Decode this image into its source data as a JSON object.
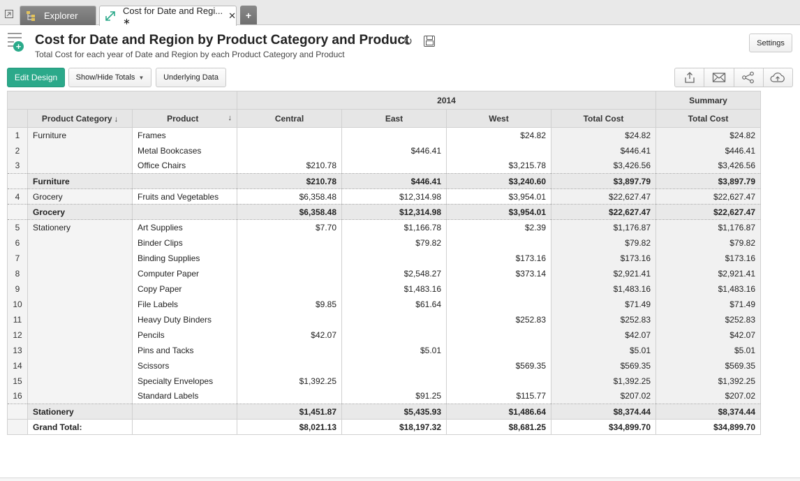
{
  "tabs": {
    "explorer_label": "Explorer",
    "active_label": "Cost for Date and Regi... ∗",
    "close_glyph": "✕",
    "add_glyph": "+"
  },
  "header": {
    "title": "Cost for Date and Region by Product Category and Product",
    "subtitle": "Total Cost for each year of Date and Region by each Product Category and Product",
    "settings_label": "Settings"
  },
  "toolbar": {
    "edit_design_label": "Edit Design",
    "show_hide_label": "Show/Hide Totals",
    "underlying_label": "Underlying Data",
    "icons": [
      "export-icon",
      "email-icon",
      "share-icon",
      "publish-icon"
    ]
  },
  "colors": {
    "accent": "#2ba98a",
    "header_bg": "#e6e6e6",
    "subtotal_bg": "#e9e9e9"
  },
  "pivot": {
    "year_header": "2014",
    "summary_header": "Summary",
    "columns": [
      "Product Category",
      "Product",
      "Central",
      "East",
      "West",
      "Total Cost",
      "Total Cost"
    ],
    "rows": [
      {
        "kind": "data",
        "num": "1",
        "category": "Furniture",
        "product": "Frames",
        "central": "",
        "east": "",
        "west": "$24.82",
        "total": "$24.82",
        "summary": "$24.82"
      },
      {
        "kind": "data",
        "num": "2",
        "category": "",
        "product": "Metal Bookcases",
        "central": "",
        "east": "$446.41",
        "west": "",
        "total": "$446.41",
        "summary": "$446.41"
      },
      {
        "kind": "data",
        "num": "3",
        "category": "",
        "product": "Office Chairs",
        "central": "$210.78",
        "east": "",
        "west": "$3,215.78",
        "total": "$3,426.56",
        "summary": "$3,426.56"
      },
      {
        "kind": "sub",
        "num": "",
        "category": "Furniture",
        "product": "",
        "central": "$210.78",
        "east": "$446.41",
        "west": "$3,240.60",
        "total": "$3,897.79",
        "summary": "$3,897.79"
      },
      {
        "kind": "data",
        "num": "4",
        "category": "Grocery",
        "product": "Fruits and Vegetables",
        "central": "$6,358.48",
        "east": "$12,314.98",
        "west": "$3,954.01",
        "total": "$22,627.47",
        "summary": "$22,627.47"
      },
      {
        "kind": "sub",
        "num": "",
        "category": "Grocery",
        "product": "",
        "central": "$6,358.48",
        "east": "$12,314.98",
        "west": "$3,954.01",
        "total": "$22,627.47",
        "summary": "$22,627.47"
      },
      {
        "kind": "data",
        "num": "5",
        "category": "Stationery",
        "product": "Art Supplies",
        "central": "$7.70",
        "east": "$1,166.78",
        "west": "$2.39",
        "total": "$1,176.87",
        "summary": "$1,176.87"
      },
      {
        "kind": "data",
        "num": "6",
        "category": "",
        "product": "Binder Clips",
        "central": "",
        "east": "$79.82",
        "west": "",
        "total": "$79.82",
        "summary": "$79.82"
      },
      {
        "kind": "data",
        "num": "7",
        "category": "",
        "product": "Binding Supplies",
        "central": "",
        "east": "",
        "west": "$173.16",
        "total": "$173.16",
        "summary": "$173.16"
      },
      {
        "kind": "data",
        "num": "8",
        "category": "",
        "product": "Computer Paper",
        "central": "",
        "east": "$2,548.27",
        "west": "$373.14",
        "total": "$2,921.41",
        "summary": "$2,921.41"
      },
      {
        "kind": "data",
        "num": "9",
        "category": "",
        "product": "Copy Paper",
        "central": "",
        "east": "$1,483.16",
        "west": "",
        "total": "$1,483.16",
        "summary": "$1,483.16"
      },
      {
        "kind": "data",
        "num": "10",
        "category": "",
        "product": "File Labels",
        "central": "$9.85",
        "east": "$61.64",
        "west": "",
        "total": "$71.49",
        "summary": "$71.49"
      },
      {
        "kind": "data",
        "num": "11",
        "category": "",
        "product": "Heavy Duty Binders",
        "central": "",
        "east": "",
        "west": "$252.83",
        "total": "$252.83",
        "summary": "$252.83"
      },
      {
        "kind": "data",
        "num": "12",
        "category": "",
        "product": "Pencils",
        "central": "$42.07",
        "east": "",
        "west": "",
        "total": "$42.07",
        "summary": "$42.07"
      },
      {
        "kind": "data",
        "num": "13",
        "category": "",
        "product": "Pins and Tacks",
        "central": "",
        "east": "$5.01",
        "west": "",
        "total": "$5.01",
        "summary": "$5.01"
      },
      {
        "kind": "data",
        "num": "14",
        "category": "",
        "product": "Scissors",
        "central": "",
        "east": "",
        "west": "$569.35",
        "total": "$569.35",
        "summary": "$569.35"
      },
      {
        "kind": "data",
        "num": "15",
        "category": "",
        "product": "Specialty Envelopes",
        "central": "$1,392.25",
        "east": "",
        "west": "",
        "total": "$1,392.25",
        "summary": "$1,392.25"
      },
      {
        "kind": "data",
        "num": "16",
        "category": "",
        "product": "Standard Labels",
        "central": "",
        "east": "$91.25",
        "west": "$115.77",
        "total": "$207.02",
        "summary": "$207.02"
      },
      {
        "kind": "sub",
        "num": "",
        "category": "Stationery",
        "product": "",
        "central": "$1,451.87",
        "east": "$5,435.93",
        "west": "$1,486.64",
        "total": "$8,374.44",
        "summary": "$8,374.44"
      },
      {
        "kind": "grand",
        "num": "",
        "category": "Grand Total:",
        "product": "",
        "central": "$8,021.13",
        "east": "$18,197.32",
        "west": "$8,681.25",
        "total": "$34,899.70",
        "summary": "$34,899.70"
      }
    ]
  }
}
